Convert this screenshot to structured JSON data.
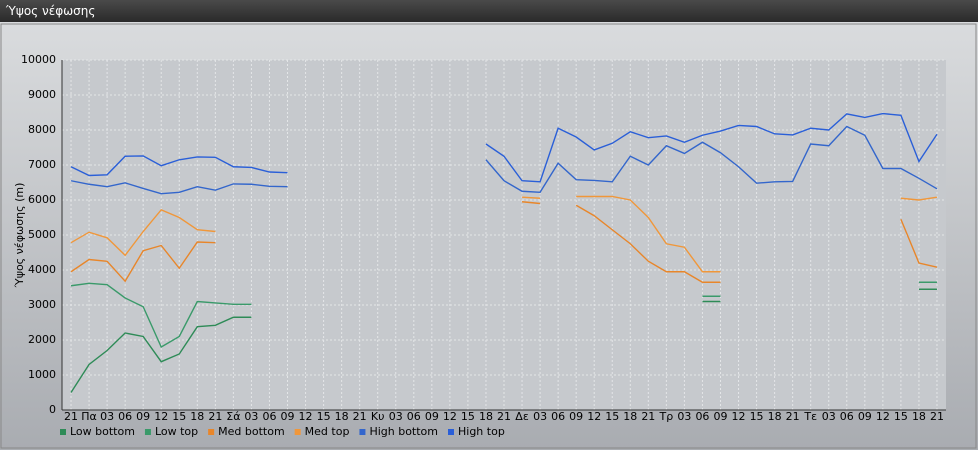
{
  "chart_data": {
    "type": "line",
    "title": "Ύψος νέφωσης",
    "ylabel": "Ύψος νέφωσης (m)",
    "categories": [
      "21",
      "Πα",
      "03",
      "06",
      "09",
      "12",
      "15",
      "18",
      "21",
      "Σά",
      "03",
      "06",
      "09",
      "12",
      "15",
      "18",
      "21",
      "Κυ",
      "03",
      "06",
      "09",
      "12",
      "15",
      "18",
      "21",
      "Δε",
      "03",
      "06",
      "09",
      "12",
      "15",
      "18",
      "21",
      "Τρ",
      "03",
      "06",
      "09",
      "12",
      "15",
      "18",
      "21",
      "Τε",
      "03",
      "06",
      "09",
      "12",
      "15",
      "18",
      "21"
    ],
    "ylim": [
      0,
      10000
    ],
    "yticks": [
      0,
      1000,
      2000,
      3000,
      4000,
      5000,
      6000,
      7000,
      8000,
      9000,
      10000
    ],
    "grid": true,
    "series": [
      {
        "name": "Low bottom",
        "color": "#2e8b57",
        "values": [
          500,
          1300,
          1700,
          2200,
          2100,
          1380,
          1600,
          2380,
          2420,
          2650,
          2650,
          null,
          null,
          null,
          null,
          null,
          null,
          null,
          null,
          null,
          null,
          null,
          null,
          null,
          null,
          null,
          null,
          null,
          null,
          null,
          null,
          null,
          null,
          null,
          null,
          3100,
          3100,
          null,
          null,
          null,
          null,
          null,
          null,
          null,
          null,
          null,
          null,
          3450,
          3450
        ]
      },
      {
        "name": "Low top",
        "color": "#3a9a6a",
        "values": [
          3550,
          3620,
          3580,
          3200,
          2950,
          1800,
          2100,
          3100,
          3060,
          3020,
          3020,
          null,
          null,
          null,
          null,
          null,
          null,
          null,
          null,
          null,
          null,
          null,
          null,
          null,
          null,
          null,
          null,
          null,
          null,
          null,
          null,
          null,
          null,
          null,
          null,
          3250,
          3250,
          null,
          null,
          null,
          null,
          null,
          null,
          null,
          null,
          null,
          null,
          3650,
          3650
        ]
      },
      {
        "name": "Med bottom",
        "color": "#e8862a",
        "values": [
          3950,
          4300,
          4250,
          3680,
          4550,
          4700,
          4050,
          4800,
          4780,
          null,
          null,
          null,
          null,
          null,
          null,
          null,
          null,
          null,
          null,
          null,
          null,
          null,
          null,
          null,
          null,
          5950,
          5900,
          null,
          5850,
          5550,
          5150,
          4750,
          4250,
          3950,
          3950,
          3650,
          3650,
          null,
          null,
          null,
          null,
          null,
          null,
          null,
          null,
          null,
          5450,
          4200,
          4080
        ]
      },
      {
        "name": "Med top",
        "color": "#f0973a",
        "values": [
          4780,
          5080,
          4920,
          4420,
          5100,
          5720,
          5500,
          5150,
          5100,
          null,
          null,
          null,
          null,
          null,
          null,
          null,
          null,
          null,
          null,
          null,
          null,
          null,
          null,
          null,
          null,
          6080,
          6050,
          null,
          6100,
          6100,
          6100,
          6000,
          5500,
          4750,
          4650,
          3950,
          3950,
          null,
          null,
          null,
          null,
          null,
          null,
          null,
          null,
          null,
          6050,
          6000,
          6080
        ]
      },
      {
        "name": "High bottom",
        "color": "#3366cc",
        "values": [
          6550,
          6450,
          6380,
          6490,
          6330,
          6180,
          6220,
          6380,
          6280,
          6460,
          6450,
          6390,
          6380,
          null,
          null,
          null,
          null,
          null,
          null,
          null,
          null,
          null,
          null,
          7150,
          6550,
          6250,
          6220,
          7050,
          6580,
          6560,
          6520,
          7250,
          7000,
          7550,
          7330,
          7650,
          7350,
          6950,
          6480,
          6520,
          6530,
          7600,
          7550,
          8100,
          7850,
          6900,
          6900,
          6620,
          6320
        ]
      },
      {
        "name": "High top",
        "color": "#2a5fd8",
        "values": [
          6950,
          6700,
          6720,
          7250,
          7260,
          6980,
          7150,
          7230,
          7220,
          6950,
          6930,
          6800,
          6780,
          null,
          null,
          null,
          null,
          null,
          null,
          null,
          null,
          null,
          null,
          7600,
          7250,
          6550,
          6520,
          8050,
          7800,
          7430,
          7620,
          7950,
          7780,
          7830,
          7650,
          7850,
          7970,
          8130,
          8100,
          7890,
          7860,
          8050,
          8000,
          8460,
          8360,
          8470,
          8420,
          7100,
          7880
        ]
      }
    ]
  }
}
